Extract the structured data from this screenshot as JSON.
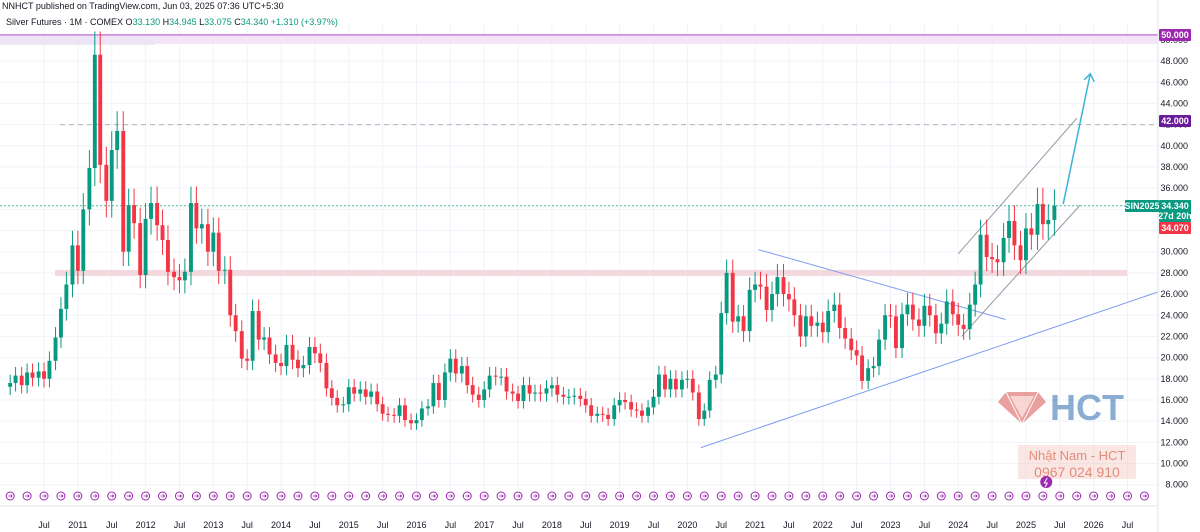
{
  "header": {
    "publisher": "NNHCT published on TradingView.com, Jun 03, 2025 07:36 UTC+5:30"
  },
  "legend": {
    "symbol": "Silver Futures · 1M · COMEX",
    "open_label": "O",
    "open": "33.130",
    "high_label": "H",
    "high": "34.945",
    "low_label": "L",
    "low": "33.075",
    "close_label": "C",
    "close": "34.340",
    "change": "+1.310 (+3.97%)"
  },
  "price_tags": {
    "level_50": "50.000",
    "level_42": "42.000",
    "symbol_code": "SIN2025",
    "last_price": "34.340",
    "countdown": "27d 20h",
    "low_mark": "34.070"
  },
  "watermark": {
    "brand": "HCT",
    "name": "Nhật Nam - HCT",
    "phone": "0967 024 910"
  },
  "colors": {
    "up": "#089981",
    "down": "#f23645",
    "resistance_band": "#cb7ee0",
    "support_band": "#f3d9de",
    "channel": "#9598a1",
    "triangle": "#7e9cf0",
    "projection": "#3bb3d8",
    "event_icon": "#9c27b0"
  },
  "chart_data": {
    "type": "candlestick",
    "title": "Silver Futures · 1M · COMEX",
    "interval": "1M",
    "ylim": [
      7.5,
      51.5
    ],
    "y_ticks": [
      "8.000",
      "10.000",
      "12.000",
      "14.000",
      "16.000",
      "18.000",
      "20.000",
      "22.000",
      "24.000",
      "26.000",
      "28.000",
      "30.000",
      "32.000",
      "34.000",
      "36.000",
      "38.000",
      "40.000",
      "42.000",
      "44.000",
      "46.000",
      "48.000",
      "50.000"
    ],
    "x_ticks": [
      {
        "label": "Jul",
        "t": 2010.5
      },
      {
        "label": "2011",
        "t": 2011.0
      },
      {
        "label": "Jul",
        "t": 2011.5
      },
      {
        "label": "2012",
        "t": 2012.0
      },
      {
        "label": "Jul",
        "t": 2012.5
      },
      {
        "label": "2013",
        "t": 2013.0
      },
      {
        "label": "Jul",
        "t": 2013.5
      },
      {
        "label": "2014",
        "t": 2014.0
      },
      {
        "label": "Jul",
        "t": 2014.5
      },
      {
        "label": "2015",
        "t": 2015.0
      },
      {
        "label": "Jul",
        "t": 2015.5
      },
      {
        "label": "2016",
        "t": 2016.0
      },
      {
        "label": "Jul",
        "t": 2016.5
      },
      {
        "label": "2017",
        "t": 2017.0
      },
      {
        "label": "Jul",
        "t": 2017.5
      },
      {
        "label": "2018",
        "t": 2018.0
      },
      {
        "label": "Jul",
        "t": 2018.5
      },
      {
        "label": "2019",
        "t": 2019.0
      },
      {
        "label": "Jul",
        "t": 2019.5
      },
      {
        "label": "2020",
        "t": 2020.0
      },
      {
        "label": "Jul",
        "t": 2020.5
      },
      {
        "label": "2021",
        "t": 2021.0
      },
      {
        "label": "Jul",
        "t": 2021.5
      },
      {
        "label": "2022",
        "t": 2022.0
      },
      {
        "label": "Jul",
        "t": 2022.5
      },
      {
        "label": "2023",
        "t": 2023.0
      },
      {
        "label": "Jul",
        "t": 2023.5
      },
      {
        "label": "2024",
        "t": 2024.0
      },
      {
        "label": "Jul",
        "t": 2024.5
      },
      {
        "label": "2025",
        "t": 2025.0
      },
      {
        "label": "Jul",
        "t": 2025.5
      },
      {
        "label": "2026",
        "t": 2026.0
      },
      {
        "label": "Jul",
        "t": 2026.5
      }
    ],
    "closes": [
      {
        "t": 2010.0,
        "c": 17.6
      },
      {
        "t": 2010.08,
        "c": 18.3
      },
      {
        "t": 2010.17,
        "c": 17.4
      },
      {
        "t": 2010.25,
        "c": 18.6
      },
      {
        "t": 2010.33,
        "c": 18.1
      },
      {
        "t": 2010.42,
        "c": 18.7
      },
      {
        "t": 2010.5,
        "c": 18.0
      },
      {
        "t": 2010.58,
        "c": 19.7
      },
      {
        "t": 2010.67,
        "c": 21.9
      },
      {
        "t": 2010.75,
        "c": 24.6
      },
      {
        "t": 2010.83,
        "c": 26.9
      },
      {
        "t": 2010.92,
        "c": 30.6
      },
      {
        "t": 2011.0,
        "c": 28.2
      },
      {
        "t": 2011.08,
        "c": 34.0
      },
      {
        "t": 2011.17,
        "c": 37.9
      },
      {
        "t": 2011.25,
        "c": 48.6
      },
      {
        "t": 2011.33,
        "c": 38.2
      },
      {
        "t": 2011.42,
        "c": 34.8
      },
      {
        "t": 2011.5,
        "c": 39.6
      },
      {
        "t": 2011.58,
        "c": 41.4
      },
      {
        "t": 2011.67,
        "c": 30.0
      },
      {
        "t": 2011.75,
        "c": 34.4
      },
      {
        "t": 2011.83,
        "c": 32.7
      },
      {
        "t": 2011.92,
        "c": 27.8
      },
      {
        "t": 2012.0,
        "c": 33.1
      },
      {
        "t": 2012.08,
        "c": 34.6
      },
      {
        "t": 2012.17,
        "c": 32.5
      },
      {
        "t": 2012.25,
        "c": 31.1
      },
      {
        "t": 2012.33,
        "c": 28.1
      },
      {
        "t": 2012.42,
        "c": 27.6
      },
      {
        "t": 2012.5,
        "c": 27.3
      },
      {
        "t": 2012.58,
        "c": 28.1
      },
      {
        "t": 2012.67,
        "c": 34.6
      },
      {
        "t": 2012.75,
        "c": 32.2
      },
      {
        "t": 2012.83,
        "c": 32.6
      },
      {
        "t": 2012.92,
        "c": 30.0
      },
      {
        "t": 2013.0,
        "c": 31.8
      },
      {
        "t": 2013.08,
        "c": 28.2
      },
      {
        "t": 2013.17,
        "c": 28.3
      },
      {
        "t": 2013.25,
        "c": 24.0
      },
      {
        "t": 2013.33,
        "c": 22.5
      },
      {
        "t": 2013.42,
        "c": 19.9
      },
      {
        "t": 2013.5,
        "c": 19.7
      },
      {
        "t": 2013.58,
        "c": 24.4
      },
      {
        "t": 2013.67,
        "c": 21.7
      },
      {
        "t": 2013.75,
        "c": 21.9
      },
      {
        "t": 2013.83,
        "c": 20.3
      },
      {
        "t": 2013.92,
        "c": 19.5
      },
      {
        "t": 2014.0,
        "c": 19.2
      },
      {
        "t": 2014.08,
        "c": 21.2
      },
      {
        "t": 2014.17,
        "c": 19.8
      },
      {
        "t": 2014.25,
        "c": 19.0
      },
      {
        "t": 2014.33,
        "c": 19.3
      },
      {
        "t": 2014.42,
        "c": 21.0
      },
      {
        "t": 2014.5,
        "c": 20.4
      },
      {
        "t": 2014.58,
        "c": 19.5
      },
      {
        "t": 2014.67,
        "c": 17.1
      },
      {
        "t": 2014.75,
        "c": 16.2
      },
      {
        "t": 2014.83,
        "c": 15.5
      },
      {
        "t": 2014.92,
        "c": 15.6
      },
      {
        "t": 2015.0,
        "c": 17.2
      },
      {
        "t": 2015.08,
        "c": 16.6
      },
      {
        "t": 2015.17,
        "c": 17.0
      },
      {
        "t": 2015.25,
        "c": 16.3
      },
      {
        "t": 2015.33,
        "c": 16.8
      },
      {
        "t": 2015.42,
        "c": 15.6
      },
      {
        "t": 2015.5,
        "c": 14.7
      },
      {
        "t": 2015.58,
        "c": 14.6
      },
      {
        "t": 2015.67,
        "c": 14.5
      },
      {
        "t": 2015.75,
        "c": 15.5
      },
      {
        "t": 2015.83,
        "c": 14.1
      },
      {
        "t": 2015.92,
        "c": 13.8
      },
      {
        "t": 2016.0,
        "c": 14.1
      },
      {
        "t": 2016.08,
        "c": 15.2
      },
      {
        "t": 2016.17,
        "c": 15.4
      },
      {
        "t": 2016.25,
        "c": 17.6
      },
      {
        "t": 2016.33,
        "c": 16.0
      },
      {
        "t": 2016.42,
        "c": 18.6
      },
      {
        "t": 2016.5,
        "c": 19.9
      },
      {
        "t": 2016.58,
        "c": 18.5
      },
      {
        "t": 2016.67,
        "c": 19.2
      },
      {
        "t": 2016.75,
        "c": 17.4
      },
      {
        "t": 2016.83,
        "c": 16.5
      },
      {
        "t": 2016.92,
        "c": 16.0
      },
      {
        "t": 2017.0,
        "c": 17.0
      },
      {
        "t": 2017.08,
        "c": 18.3
      },
      {
        "t": 2017.17,
        "c": 18.2
      },
      {
        "t": 2017.25,
        "c": 18.2
      },
      {
        "t": 2017.33,
        "c": 16.8
      },
      {
        "t": 2017.42,
        "c": 16.6
      },
      {
        "t": 2017.5,
        "c": 15.9
      },
      {
        "t": 2017.58,
        "c": 17.4
      },
      {
        "t": 2017.67,
        "c": 16.6
      },
      {
        "t": 2017.75,
        "c": 16.7
      },
      {
        "t": 2017.83,
        "c": 16.6
      },
      {
        "t": 2017.92,
        "c": 17.1
      },
      {
        "t": 2018.0,
        "c": 17.4
      },
      {
        "t": 2018.08,
        "c": 16.5
      },
      {
        "t": 2018.17,
        "c": 16.3
      },
      {
        "t": 2018.25,
        "c": 16.3
      },
      {
        "t": 2018.33,
        "c": 16.4
      },
      {
        "t": 2018.42,
        "c": 16.1
      },
      {
        "t": 2018.5,
        "c": 15.5
      },
      {
        "t": 2018.58,
        "c": 14.5
      },
      {
        "t": 2018.67,
        "c": 14.7
      },
      {
        "t": 2018.75,
        "c": 14.6
      },
      {
        "t": 2018.83,
        "c": 14.2
      },
      {
        "t": 2018.92,
        "c": 15.5
      },
      {
        "t": 2019.0,
        "c": 16.0
      },
      {
        "t": 2019.08,
        "c": 15.8
      },
      {
        "t": 2019.17,
        "c": 15.1
      },
      {
        "t": 2019.25,
        "c": 15.0
      },
      {
        "t": 2019.33,
        "c": 14.5
      },
      {
        "t": 2019.42,
        "c": 15.3
      },
      {
        "t": 2019.5,
        "c": 16.3
      },
      {
        "t": 2019.58,
        "c": 18.4
      },
      {
        "t": 2019.67,
        "c": 17.0
      },
      {
        "t": 2019.75,
        "c": 18.0
      },
      {
        "t": 2019.83,
        "c": 17.0
      },
      {
        "t": 2019.92,
        "c": 17.9
      },
      {
        "t": 2020.0,
        "c": 18.0
      },
      {
        "t": 2020.08,
        "c": 16.7
      },
      {
        "t": 2020.17,
        "c": 14.2
      },
      {
        "t": 2020.25,
        "c": 15.0
      },
      {
        "t": 2020.33,
        "c": 17.9
      },
      {
        "t": 2020.42,
        "c": 18.4
      },
      {
        "t": 2020.5,
        "c": 24.2
      },
      {
        "t": 2020.58,
        "c": 28.0
      },
      {
        "t": 2020.67,
        "c": 23.4
      },
      {
        "t": 2020.75,
        "c": 23.9
      },
      {
        "t": 2020.83,
        "c": 22.5
      },
      {
        "t": 2020.92,
        "c": 26.4
      },
      {
        "t": 2021.0,
        "c": 26.9
      },
      {
        "t": 2021.08,
        "c": 26.7
      },
      {
        "t": 2021.17,
        "c": 24.5
      },
      {
        "t": 2021.25,
        "c": 26.0
      },
      {
        "t": 2021.33,
        "c": 27.6
      },
      {
        "t": 2021.42,
        "c": 26.0
      },
      {
        "t": 2021.5,
        "c": 25.5
      },
      {
        "t": 2021.58,
        "c": 24.0
      },
      {
        "t": 2021.67,
        "c": 22.0
      },
      {
        "t": 2021.75,
        "c": 23.9
      },
      {
        "t": 2021.83,
        "c": 23.0
      },
      {
        "t": 2021.92,
        "c": 23.3
      },
      {
        "t": 2022.0,
        "c": 22.4
      },
      {
        "t": 2022.08,
        "c": 24.4
      },
      {
        "t": 2022.17,
        "c": 25.0
      },
      {
        "t": 2022.25,
        "c": 22.8
      },
      {
        "t": 2022.33,
        "c": 21.8
      },
      {
        "t": 2022.42,
        "c": 20.7
      },
      {
        "t": 2022.5,
        "c": 20.2
      },
      {
        "t": 2022.58,
        "c": 17.8
      },
      {
        "t": 2022.67,
        "c": 19.0
      },
      {
        "t": 2022.75,
        "c": 19.2
      },
      {
        "t": 2022.83,
        "c": 21.7
      },
      {
        "t": 2022.92,
        "c": 24.0
      },
      {
        "t": 2023.0,
        "c": 23.9
      },
      {
        "t": 2023.08,
        "c": 20.9
      },
      {
        "t": 2023.17,
        "c": 24.1
      },
      {
        "t": 2023.25,
        "c": 25.0
      },
      {
        "t": 2023.33,
        "c": 23.6
      },
      {
        "t": 2023.42,
        "c": 23.0
      },
      {
        "t": 2023.5,
        "c": 24.9
      },
      {
        "t": 2023.58,
        "c": 24.0
      },
      {
        "t": 2023.67,
        "c": 22.3
      },
      {
        "t": 2023.75,
        "c": 23.2
      },
      {
        "t": 2023.83,
        "c": 25.3
      },
      {
        "t": 2023.92,
        "c": 24.1
      },
      {
        "t": 2024.0,
        "c": 23.1
      },
      {
        "t": 2024.08,
        "c": 22.7
      },
      {
        "t": 2024.17,
        "c": 25.0
      },
      {
        "t": 2024.25,
        "c": 26.9
      },
      {
        "t": 2024.33,
        "c": 31.6
      },
      {
        "t": 2024.42,
        "c": 29.5
      },
      {
        "t": 2024.5,
        "c": 29.3
      },
      {
        "t": 2024.58,
        "c": 29.0
      },
      {
        "t": 2024.67,
        "c": 31.3
      },
      {
        "t": 2024.75,
        "c": 32.9
      },
      {
        "t": 2024.83,
        "c": 30.6
      },
      {
        "t": 2024.92,
        "c": 29.2
      },
      {
        "t": 2025.0,
        "c": 32.2
      },
      {
        "t": 2025.08,
        "c": 31.6
      },
      {
        "t": 2025.17,
        "c": 34.5
      },
      {
        "t": 2025.25,
        "c": 32.6
      },
      {
        "t": 2025.33,
        "c": 33.0
      },
      {
        "t": 2025.42,
        "c": 34.34
      }
    ],
    "horizontal_levels": [
      {
        "label": "50.000",
        "value": 50.0,
        "style": "band"
      },
      {
        "label": "42.000",
        "value": 42.0,
        "style": "dashed"
      },
      {
        "value": 28.0,
        "style": "band"
      }
    ],
    "last_price": 34.34,
    "annotations": [
      "ascending channel",
      "symmetrical triangle",
      "projection arrow toward ~47"
    ]
  }
}
